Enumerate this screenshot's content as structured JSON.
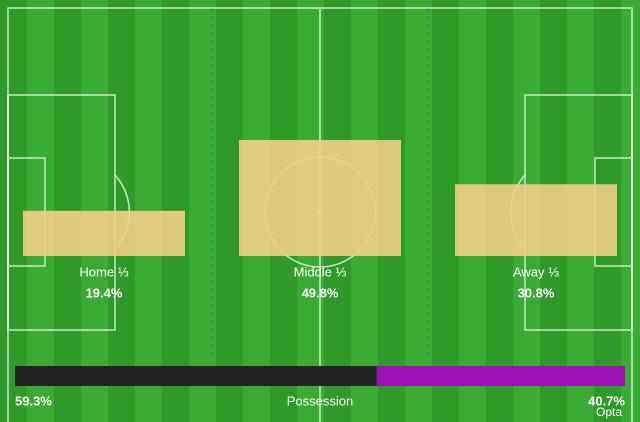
{
  "chart_data": [
    {
      "type": "territory",
      "categories": [
        "Home ⅓",
        "Middle ⅓",
        "Away ⅓"
      ],
      "values": [
        19.4,
        49.8,
        30.8
      ],
      "value_labels": [
        "19.4%",
        "49.8%",
        "30.8%"
      ],
      "color": "#f2cf86",
      "source": "Opta"
    },
    {
      "type": "possession",
      "title": "Possession",
      "values": [
        59.3,
        40.7
      ],
      "value_labels": [
        "59.3%",
        "40.7%"
      ],
      "colors": [
        "#222222",
        "#9c12b4"
      ]
    }
  ]
}
